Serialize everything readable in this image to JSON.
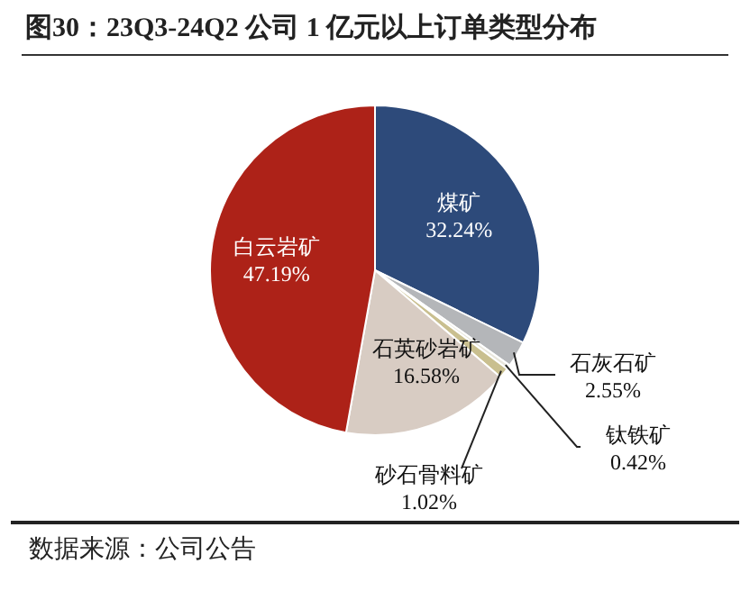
{
  "chart_data": {
    "type": "pie",
    "title": "图30：23Q3-24Q2 公司 1 亿元以上订单类型分布",
    "categories": [
      "煤矿",
      "石灰石矿",
      "钛铁矿",
      "砂石骨料矿",
      "石英砂岩矿",
      "白云岩矿"
    ],
    "values": [
      32.24,
      2.55,
      0.42,
      1.02,
      16.58,
      47.19
    ],
    "value_labels": [
      "32.24%",
      "2.55%",
      "0.42%",
      "1.02%",
      "16.58%",
      "47.19%"
    ],
    "colors": [
      "#2d4a7a",
      "#b4b6b9",
      "#e8e6dc",
      "#c9bf8f",
      "#d8ccc3",
      "#ad2218"
    ],
    "annotations": [
      "数据来源：公司公告"
    ]
  }
}
